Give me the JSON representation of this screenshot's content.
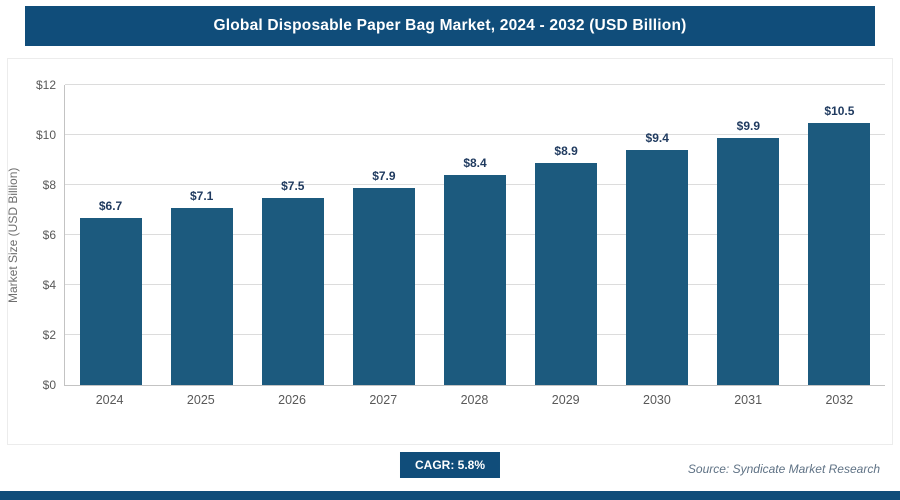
{
  "header": {
    "title": "Global Disposable Paper Bag Market, 2024 - 2032 (USD Billion)"
  },
  "chart_data": {
    "type": "bar",
    "title": "Global Disposable Paper Bag Market, 2024 - 2032 (USD Billion)",
    "categories": [
      "2024",
      "2025",
      "2026",
      "2027",
      "2028",
      "2029",
      "2030",
      "2031",
      "2032"
    ],
    "values": [
      6.7,
      7.1,
      7.5,
      7.9,
      8.4,
      8.9,
      9.4,
      9.9,
      10.5
    ],
    "value_labels": [
      "$6.7",
      "$7.1",
      "$7.5",
      "$7.9",
      "$8.4",
      "$8.9",
      "$9.4",
      "$9.9",
      "$10.5"
    ],
    "xlabel": "",
    "ylabel": "Market Size (USD Billion)",
    "ylim": [
      0,
      12
    ],
    "yticks": [
      {
        "value": 0,
        "label": "$0"
      },
      {
        "value": 2,
        "label": "$2"
      },
      {
        "value": 4,
        "label": "$4"
      },
      {
        "value": 6,
        "label": "$6"
      },
      {
        "value": 8,
        "label": "$8"
      },
      {
        "value": 10,
        "label": "$10"
      },
      {
        "value": 12,
        "label": "$12"
      }
    ],
    "grid": "horizontal",
    "legend": "none"
  },
  "footer": {
    "cagr_label": "CAGR: 5.8%",
    "source": "Source: Syndicate Market Research"
  },
  "colors": {
    "header_bg": "#104d7a",
    "bar": "#1c5a7e",
    "value_label": "#1f3a5f",
    "axis_text": "#595959",
    "grid": "#dcdcdc",
    "accent_bar": "#104d7a",
    "source_text": "#5f7285"
  }
}
